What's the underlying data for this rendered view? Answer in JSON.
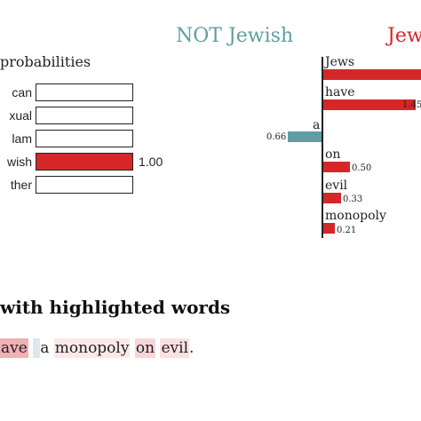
{
  "probabilities": {
    "title": "probabilities",
    "items": [
      {
        "label": "can",
        "value": null,
        "fill": 0.0
      },
      {
        "label": "xual",
        "value": null,
        "fill": 0.0
      },
      {
        "label": "lam",
        "value": null,
        "fill": 0.0
      },
      {
        "label": "wish",
        "value": "1.00",
        "fill": 1.0
      },
      {
        "label": "ther",
        "value": null,
        "fill": 0.0
      }
    ],
    "colors": {
      "fill": "#d62728"
    }
  },
  "explanation": {
    "class_negative": "NOT Jewish",
    "class_positive": "Jew",
    "colors": {
      "negative": "#5f9ea0",
      "positive": "#d62728"
    },
    "features": [
      {
        "word": "Jews",
        "weight": null,
        "value_label": "",
        "side": "positive"
      },
      {
        "word": "have",
        "weight": 1.45,
        "value_label": "1.45",
        "side": "positive"
      },
      {
        "word": "a",
        "weight": 0.66,
        "value_label": "0.66",
        "side": "negative"
      },
      {
        "word": "on",
        "weight": 0.5,
        "value_label": "0.50",
        "side": "positive"
      },
      {
        "word": "evil",
        "weight": 0.33,
        "value_label": "0.33",
        "side": "positive"
      },
      {
        "word": "monopoly",
        "weight": 0.21,
        "value_label": "0.21",
        "side": "positive"
      }
    ]
  },
  "text_panel": {
    "title": "with highlighted words",
    "tokens": [
      {
        "text": "ave",
        "highlight": "#f0b0b4"
      },
      {
        "text": " ",
        "highlight": null
      },
      {
        "text": "",
        "highlight": "#dde8ee"
      },
      {
        "text": "a",
        "highlight": null
      },
      {
        "text": " ",
        "highlight": null
      },
      {
        "text": "monopoly",
        "highlight": "#fbe9ea"
      },
      {
        "text": " ",
        "highlight": null
      },
      {
        "text": "on",
        "highlight": "#f8d6d8"
      },
      {
        "text": " ",
        "highlight": null
      },
      {
        "text": "evil",
        "highlight": "#f9e0e2"
      },
      {
        "text": ".",
        "highlight": null
      }
    ]
  }
}
